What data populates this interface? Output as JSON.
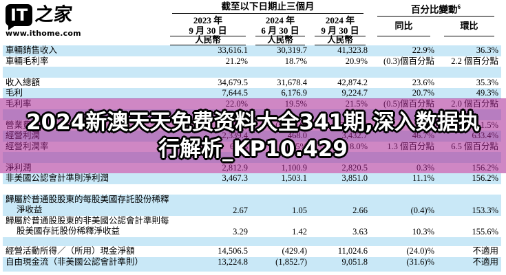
{
  "logo": {
    "it": "IT",
    "zhijia": "之家",
    "url": "www.ithome.com"
  },
  "watermark": {
    "line1": "2024新澳天天免费资料大全341期,深入数据执",
    "line2": "行解析_KP10.429"
  },
  "colors": {
    "row_alt_blue": "#c9e8f7",
    "band_magenta": "rgba(167,36,148,0.55)",
    "watermark_fill": "#ffffff",
    "watermark_outline": "#000000"
  },
  "table": {
    "header": {
      "period_group": "截至以下日期止三個月",
      "pct_group": "百分比變動",
      "pct_sup": "6",
      "dates": [
        {
          "l1": "2023 年",
          "l2": "9 月 30 日"
        },
        {
          "l1": "2024 年",
          "l2": "6 月 30 日"
        },
        {
          "l1": "2024 年",
          "l2": "9 月 30 日"
        }
      ],
      "currency": "人民幣",
      "yoy": "同比",
      "qoq": "環比"
    },
    "rows": [
      {
        "type": "data",
        "bg": "blue",
        "label": "車輛銷售收入",
        "values": [
          "33,616.1",
          "30,319.7",
          "41,323.8",
          "22.9%",
          "36.3%"
        ]
      },
      {
        "type": "data",
        "bg": "white",
        "label": "車輛毛利率",
        "values": [
          "21.2%",
          "18.7%",
          "20.9%",
          "(0.3)個百分點",
          "2.2 個百分點"
        ]
      },
      {
        "type": "blank",
        "bg": "blue"
      },
      {
        "type": "data",
        "bg": "white",
        "label": "收入總額",
        "values": [
          "34,679.5",
          "31,678.4",
          "42,874.2",
          "23.6%",
          "35.3%"
        ]
      },
      {
        "type": "data",
        "bg": "blue",
        "label": "毛利",
        "values": [
          "7,644.5",
          "6,176.9",
          "9,224.7",
          "20.7%",
          "49.3%"
        ]
      },
      {
        "type": "data",
        "bg": "white",
        "label": "毛利率",
        "values": [
          "22.0%",
          "19.5%",
          "21.5%",
          "(0.5)個百分點",
          "2.0 個百分點"
        ]
      },
      {
        "type": "blank",
        "bg": "blue"
      },
      {
        "type": "data",
        "bg": "white",
        "label": "營業費用",
        "values": [
          "(5,305.1)",
          "(5,708.9)",
          "(5,792.1)",
          "9.2%",
          "1.5%"
        ]
      },
      {
        "type": "data",
        "bg": "blue",
        "label": "經營利潤",
        "values": [
          "2,339.4",
          "468.0",
          "3,432.7",
          "46.7%",
          "633.4%"
        ]
      },
      {
        "type": "data",
        "bg": "white",
        "label": "經營利潤率",
        "values": [
          "6.7%",
          "1.5%",
          "8.0%",
          "1.3 個百分點",
          "6.5 個百分點"
        ]
      },
      {
        "type": "blank",
        "bg": "blue"
      },
      {
        "type": "data",
        "bg": "white",
        "label": "淨利潤",
        "values": [
          "2,812.9",
          "1,100.9",
          "2,820.5",
          "0.3%",
          "156.2%"
        ]
      },
      {
        "type": "data",
        "bg": "blue",
        "label": "非美國公認會計準則淨利潤",
        "values": [
          "3,467.3",
          "1,503.1",
          "3,851.0",
          "11.1%",
          "156.2%"
        ]
      },
      {
        "type": "blank",
        "bg": "white"
      },
      {
        "type": "data2",
        "bg": "blue",
        "label": "歸屬於普通股股東的每股美國存託股份稀釋",
        "label2": "淨收益",
        "values": [
          "2.67",
          "1.05",
          "2.66",
          "(0.4)%",
          "153.3%"
        ]
      },
      {
        "type": "data2",
        "bg": "white",
        "label": "歸屬於普通股股東的非美國公認會計準則每",
        "label2": "股美國存託股份稀釋淨收益",
        "values": [
          "3.29",
          "1.42",
          "3.63",
          "10.3%",
          "155.6%"
        ]
      },
      {
        "type": "blank",
        "bg": "blue",
        "h": 13
      },
      {
        "type": "data",
        "bg": "white",
        "label": "經營活動所得／（所用）現金淨額",
        "values": [
          "14,506.5",
          "(429.4)",
          "11,024.6",
          "(24.0)%",
          "不適用"
        ]
      },
      {
        "type": "data",
        "bg": "blue",
        "label": "自由現金流（非美國公認會計準則）",
        "values": [
          "13,224.8",
          "(1,852.7)",
          "9,051.8",
          "(31.6)%",
          "不適用"
        ]
      },
      {
        "type": "blank",
        "bg": "blue",
        "h": 6
      }
    ]
  }
}
